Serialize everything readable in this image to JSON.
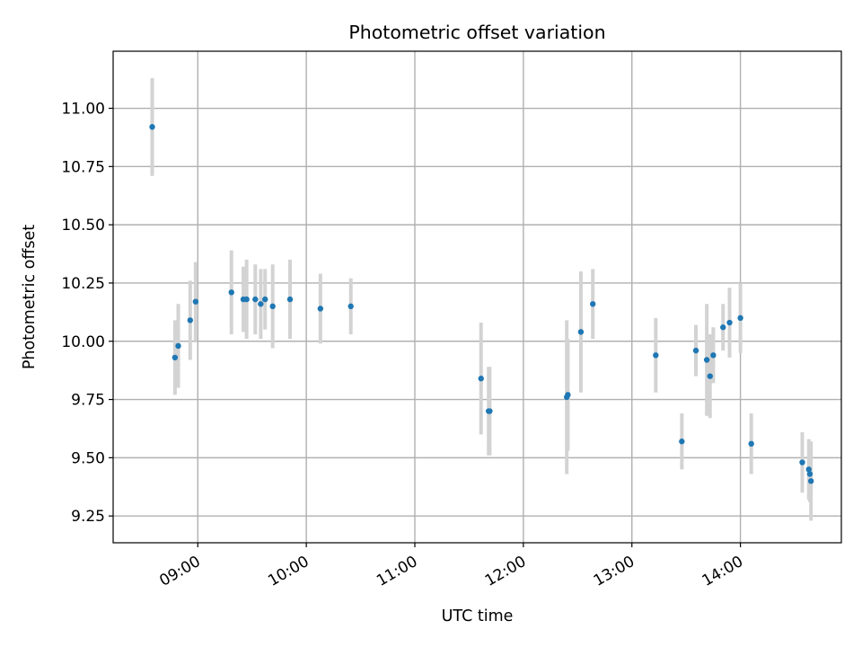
{
  "chart_data": {
    "type": "scatter",
    "title": "Photometric offset variation",
    "xlabel": "UTC time",
    "ylabel": "Photometric offset",
    "x_unit": "hours UTC",
    "xlim": [
      8.22,
      14.93
    ],
    "ylim": [
      9.135,
      11.245
    ],
    "x_ticks": [
      {
        "value": 9,
        "label": "09:00"
      },
      {
        "value": 10,
        "label": "10:00"
      },
      {
        "value": 11,
        "label": "11:00"
      },
      {
        "value": 12,
        "label": "12:00"
      },
      {
        "value": 13,
        "label": "13:00"
      },
      {
        "value": 14,
        "label": "14:00"
      }
    ],
    "y_ticks": [
      {
        "value": 9.25,
        "label": "9.25"
      },
      {
        "value": 9.5,
        "label": "9.50"
      },
      {
        "value": 9.75,
        "label": "9.75"
      },
      {
        "value": 10.0,
        "label": "10.00"
      },
      {
        "value": 10.25,
        "label": "10.25"
      },
      {
        "value": 10.5,
        "label": "10.50"
      },
      {
        "value": 10.75,
        "label": "10.75"
      },
      {
        "value": 11.0,
        "label": "11.00"
      }
    ],
    "grid": true,
    "colors": {
      "marker": "#1f77b4",
      "error_bar": "#d3d3d3"
    },
    "points": [
      {
        "x": 8.58,
        "y": 10.92,
        "err": 0.21
      },
      {
        "x": 8.79,
        "y": 9.93,
        "err": 0.16
      },
      {
        "x": 8.82,
        "y": 9.98,
        "err": 0.18
      },
      {
        "x": 8.93,
        "y": 10.09,
        "err": 0.17
      },
      {
        "x": 8.98,
        "y": 10.17,
        "err": 0.17
      },
      {
        "x": 9.31,
        "y": 10.21,
        "err": 0.18
      },
      {
        "x": 9.42,
        "y": 10.18,
        "err": 0.14
      },
      {
        "x": 9.45,
        "y": 10.18,
        "err": 0.17
      },
      {
        "x": 9.53,
        "y": 10.18,
        "err": 0.15
      },
      {
        "x": 9.58,
        "y": 10.16,
        "err": 0.15
      },
      {
        "x": 9.62,
        "y": 10.18,
        "err": 0.13
      },
      {
        "x": 9.69,
        "y": 10.15,
        "err": 0.18
      },
      {
        "x": 9.85,
        "y": 10.18,
        "err": 0.17
      },
      {
        "x": 10.13,
        "y": 10.14,
        "err": 0.15
      },
      {
        "x": 10.41,
        "y": 10.15,
        "err": 0.12
      },
      {
        "x": 11.61,
        "y": 9.84,
        "err": 0.24
      },
      {
        "x": 11.68,
        "y": 9.7,
        "err": 0.19
      },
      {
        "x": 11.69,
        "y": 9.7,
        "err": 0.19
      },
      {
        "x": 12.4,
        "y": 9.76,
        "err": 0.33
      },
      {
        "x": 12.41,
        "y": 9.77,
        "err": 0.24
      },
      {
        "x": 12.53,
        "y": 10.04,
        "err": 0.26
      },
      {
        "x": 12.64,
        "y": 10.16,
        "err": 0.15
      },
      {
        "x": 13.22,
        "y": 9.94,
        "err": 0.16
      },
      {
        "x": 13.46,
        "y": 9.57,
        "err": 0.12
      },
      {
        "x": 13.59,
        "y": 9.96,
        "err": 0.11
      },
      {
        "x": 13.69,
        "y": 9.92,
        "err": 0.24
      },
      {
        "x": 13.72,
        "y": 9.85,
        "err": 0.18
      },
      {
        "x": 13.75,
        "y": 9.94,
        "err": 0.12
      },
      {
        "x": 13.84,
        "y": 10.06,
        "err": 0.1
      },
      {
        "x": 13.9,
        "y": 10.08,
        "err": 0.15
      },
      {
        "x": 14.0,
        "y": 10.1,
        "err": 0.15
      },
      {
        "x": 14.1,
        "y": 9.56,
        "err": 0.13
      },
      {
        "x": 14.57,
        "y": 9.48,
        "err": 0.13
      },
      {
        "x": 14.63,
        "y": 9.45,
        "err": 0.13
      },
      {
        "x": 14.64,
        "y": 9.43,
        "err": 0.12
      },
      {
        "x": 14.65,
        "y": 9.4,
        "err": 0.17
      }
    ]
  }
}
